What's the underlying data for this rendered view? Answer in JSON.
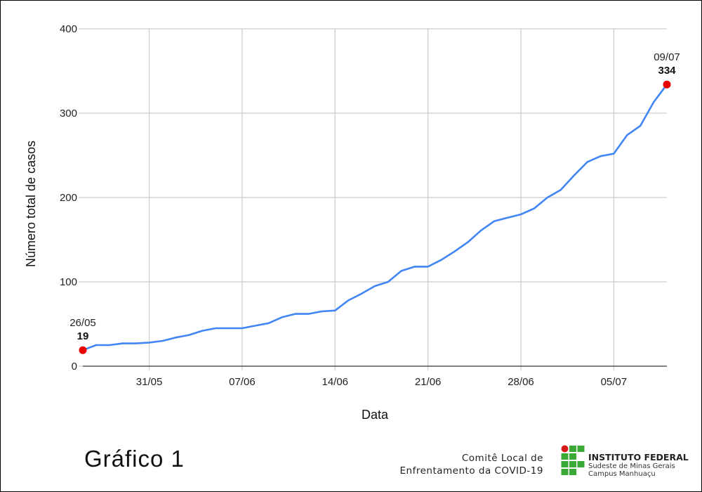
{
  "figure": {
    "title": "Gráfico 1",
    "committee_line1": "Comitê Local de",
    "committee_line2": "Enfrentamento da COVID-19",
    "logo": {
      "title": "INSTITUTO FEDERAL",
      "subtitle1": "Sudeste de Minas Gerais",
      "subtitle2": "Campus Manhuaçu",
      "green": "#3aa935",
      "red": "#d7191c"
    }
  },
  "chart_data": {
    "type": "line",
    "title": "",
    "xlabel": "Data",
    "ylabel": "Número total de casos",
    "ylim": [
      0,
      400
    ],
    "yticks": [
      0,
      100,
      200,
      300,
      400
    ],
    "xtick_labels": [
      "31/05",
      "07/06",
      "14/06",
      "21/06",
      "28/06",
      "05/07"
    ],
    "grid": true,
    "line_color": "#4285f4",
    "marker_color": "#ea0000",
    "x": [
      "26/05",
      "27/05",
      "28/05",
      "29/05",
      "30/05",
      "31/05",
      "01/06",
      "02/06",
      "03/06",
      "04/06",
      "05/06",
      "06/06",
      "07/06",
      "08/06",
      "09/06",
      "10/06",
      "11/06",
      "12/06",
      "13/06",
      "14/06",
      "15/06",
      "16/06",
      "17/06",
      "18/06",
      "19/06",
      "20/06",
      "21/06",
      "22/06",
      "23/06",
      "24/06",
      "25/06",
      "26/06",
      "27/06",
      "28/06",
      "29/06",
      "30/06",
      "01/07",
      "02/07",
      "03/07",
      "04/07",
      "05/07",
      "06/07",
      "07/07",
      "08/07",
      "09/07"
    ],
    "series": [
      {
        "name": "Número total de casos",
        "values": [
          19,
          25,
          25,
          27,
          27,
          28,
          30,
          34,
          37,
          42,
          45,
          45,
          45,
          48,
          51,
          58,
          62,
          62,
          65,
          66,
          78,
          86,
          95,
          100,
          113,
          118,
          118,
          126,
          136,
          147,
          161,
          172,
          176,
          180,
          187,
          200,
          209,
          226,
          242,
          249,
          252,
          274,
          285,
          313,
          334
        ]
      }
    ],
    "annotations": [
      {
        "date": "26/05",
        "value": "19"
      },
      {
        "date": "09/07",
        "value": "334"
      }
    ]
  }
}
